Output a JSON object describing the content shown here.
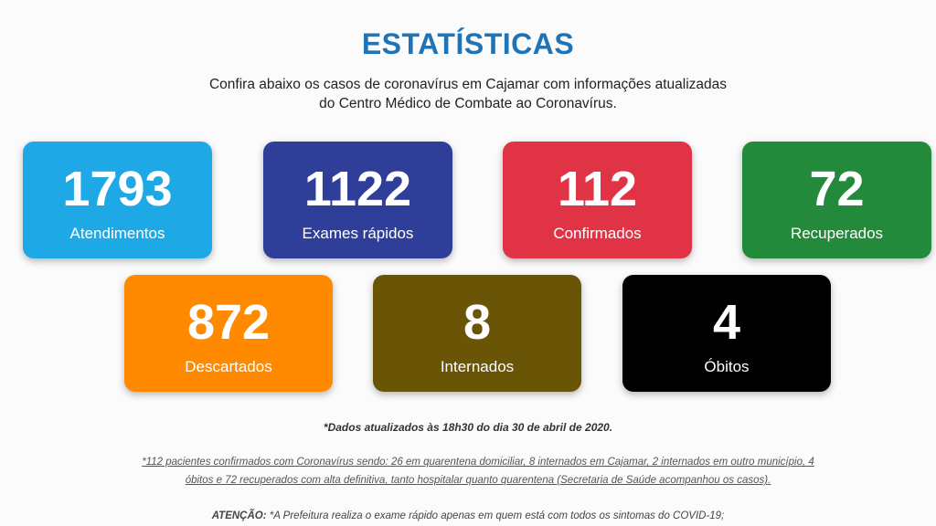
{
  "header": {
    "title": "ESTATÍSTICAS",
    "subtitle_line1": "Confira abaixo os casos de coronavírus em Cajamar com informações atualizadas",
    "subtitle_line2": "do Centro Médico de Combate ao Coronavírus."
  },
  "cards": [
    {
      "value": "1793",
      "label": "Atendimentos",
      "color": "#1ea9e6"
    },
    {
      "value": "1122",
      "label": "Exames rápidos",
      "color": "#2f3f99"
    },
    {
      "value": "112",
      "label": "Confirmados",
      "color": "#e03446"
    },
    {
      "value": "72",
      "label": "Recuperados",
      "color": "#238a3b"
    },
    {
      "value": "872",
      "label": "Descartados",
      "color": "#ff8a00"
    },
    {
      "value": "8",
      "label": "Internados",
      "color": "#6a5405"
    },
    {
      "value": "4",
      "label": "Óbitos",
      "color": "#000000"
    }
  ],
  "footer": {
    "update_note": "*Dados atualizados às 18h30 do dia 30 de abril de 2020.",
    "detail_line1": "*112 pacientes confirmados com Coronavírus sendo: 26 em quarentena domiciliar, 8 internados em Cajamar, 2 internados em outro município, 4",
    "detail_line2": "óbitos e 72 recuperados com alta definitiva, tanto hospitalar quanto quarentena (Secretaria de Saúde acompanhou os casos).",
    "warning_label": "ATENÇÃO:",
    "warning_text": " *A Prefeitura realiza o exame rápido apenas em quem está com todos os sintomas do COVID-19;"
  }
}
